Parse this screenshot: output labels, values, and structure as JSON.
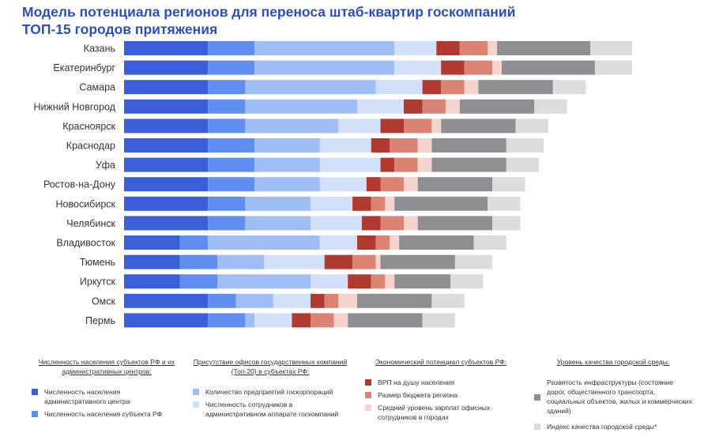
{
  "chart_data": {
    "type": "bar",
    "stacked": true,
    "title_lines": [
      "Модель потенциала регионов для переноса штаб-квартир госкомпаний",
      "ТОП-15 городов притяжения"
    ],
    "categories": [
      "Казань",
      "Екатеринбург",
      "Самара",
      "Нижний Новгород",
      "Красноярск",
      "Краснодар",
      "Уфа",
      "Ростов-на-Дону",
      "Новосибирск",
      "Челябинск",
      "Владивосток",
      "Тюмень",
      "Иркутск",
      "Омск",
      "Пермь"
    ],
    "series": [
      {
        "name": "Численность населения административного центра",
        "color": "#3a5fd9",
        "values": [
          9,
          9,
          9,
          9,
          9,
          9,
          9,
          9,
          9,
          9,
          6,
          6,
          6,
          9,
          9
        ]
      },
      {
        "name": "Численность населения субъекта РФ",
        "color": "#5f8df0",
        "values": [
          5,
          5,
          4,
          4,
          4,
          5,
          5,
          5,
          4,
          4,
          3,
          4,
          4,
          3,
          4
        ]
      },
      {
        "name": "Количество предприятий госкорпораций",
        "color": "#9fbef5",
        "values": [
          15,
          15,
          14,
          12,
          10,
          7,
          7,
          7,
          7,
          7,
          12,
          5,
          10,
          4,
          1
        ]
      },
      {
        "name": "Численность сотрудников в административном аппарате госкомпаний",
        "color": "#d3e0fa",
        "values": [
          4.5,
          5,
          5,
          5,
          4.5,
          5.5,
          6.5,
          5,
          4.5,
          5.5,
          4,
          6.5,
          4,
          4,
          4
        ]
      },
      {
        "name": "ВРП на душу населения",
        "color": "#b03a30",
        "values": [
          2.5,
          2.5,
          2,
          2,
          2.5,
          2,
          1.5,
          1.5,
          2,
          2,
          2,
          3,
          2.5,
          1.5,
          2
        ]
      },
      {
        "name": "Размер бюджета региона",
        "color": "#dc8473",
        "values": [
          3,
          3,
          2.5,
          2.5,
          3,
          3,
          2.5,
          2.5,
          1.5,
          2.5,
          1.5,
          2.5,
          1.5,
          1.5,
          2.5
        ]
      },
      {
        "name": "Средний уровень зарплат офисных сотрудников в городах",
        "color": "#f4d4cd",
        "values": [
          1,
          1,
          1.5,
          1.5,
          1,
          1.5,
          1.5,
          1.5,
          1,
          1.5,
          1,
          0.5,
          1,
          2,
          1.5
        ]
      },
      {
        "name": "Развитость инфраструктуры (состояние дорог, общественного транспорта, социальных объектов, жилых и коммерческих зданий)",
        "color": "#8f8f93",
        "values": [
          10,
          10,
          8,
          8,
          8,
          8,
          8,
          8,
          10,
          8,
          8,
          8,
          6,
          8,
          8
        ]
      },
      {
        "name": "Индекс качества городской среды*",
        "color": "#dcdcdc",
        "values": [
          4.5,
          4,
          3.5,
          3.5,
          3.5,
          4,
          3.5,
          3.5,
          3.5,
          3,
          3.5,
          4,
          3.5,
          3.5,
          3.5
        ]
      }
    ],
    "legend": [
      {
        "title": "Численность населения субъектов РФ и их административных центров:",
        "items": [
          "Численность населения административного центра",
          "Численность населения субъекта РФ"
        ]
      },
      {
        "title": "Присутствие офисов государственных компаний (Топ-20) в субъектах РФ:",
        "items": [
          "Количество предприятий госкорпораций",
          "Численность сотрудников в административном аппарате госкомпаний"
        ]
      },
      {
        "title": "Экономический потенциал субъектов РФ:",
        "items": [
          "ВРП на душу населения",
          "Размер бюджета региона",
          "Средний уровень зарплат офисных сотрудников в городах"
        ]
      },
      {
        "title": "Уровень качества городской среды:",
        "items": [
          "Развитость инфраструктуры (состояние дорог, общественного транспорта, социальных объектов, жилых и коммерческих зданий)",
          "Индекс качества городской среды*"
        ]
      }
    ],
    "xlabel": "",
    "ylabel": "",
    "axes_visible": false,
    "grid": false
  }
}
